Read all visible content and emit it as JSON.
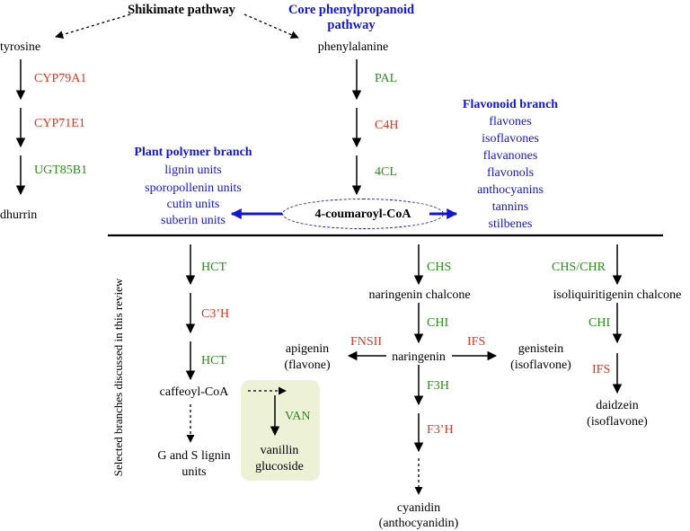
{
  "headers": {
    "shikimate": "Shikimate pathway",
    "core_line1": "Core phenylpropanoid",
    "core_line2": "pathway",
    "flavonoid": "Flavonoid branch",
    "polymer": "Plant polymer branch"
  },
  "dhurrin_path": {
    "tyrosine": "tyrosine",
    "enzyme1": "CYP79A1",
    "enzyme2": "CYP71E1",
    "enzyme3": "UGT85B1",
    "product": "dhurrin"
  },
  "core_path": {
    "phenylalanine": "phenylalanine",
    "enzyme1": "PAL",
    "enzyme2": "C4H",
    "enzyme3": "4CL",
    "hub": "4-coumaroyl-CoA"
  },
  "polymer_list": [
    "lignin units",
    "sporopollenin units",
    "cutin units",
    "suberin units"
  ],
  "flavonoid_list": [
    "flavones",
    "isoflavones",
    "flavanones",
    "flavonols",
    "anthocyanins",
    "tannins",
    "stilbenes"
  ],
  "side_label": "Selected branches discussed in this review",
  "lignin_branch": {
    "enzyme1": "HCT",
    "enzyme2": "C3’H",
    "enzyme3": "HCT",
    "intermediate": "caffeoyl-CoA",
    "product_line1": "G and S lignin",
    "product_line2": "units"
  },
  "vanillin_branch": {
    "enzyme": "VAN",
    "product_line1": "vanillin",
    "product_line2": "glucoside"
  },
  "flavonoid_branch": {
    "enzyme_chs": "CHS",
    "chalcone": "naringenin chalcone",
    "enzyme_chi": "CHI",
    "naringenin": "naringenin",
    "enzyme_fnsii": "FNSII",
    "apigenin_line1": "apigenin",
    "apigenin_line2": "(flavone)",
    "enzyme_ifs": "IFS",
    "genistein_line1": "genistein",
    "genistein_line2": "(isoflavone)",
    "enzyme_f3h": "F3H",
    "enzyme_f3ph": "F3’H",
    "cyanidin_line1": "cyanidin",
    "cyanidin_line2": "(anthocyanidin)"
  },
  "isoflavonoid_branch": {
    "enzyme_chs_chr": "CHS/CHR",
    "chalcone": "isoliquiritigenin chalcone",
    "enzyme_chi": "CHI",
    "enzyme_ifs": "IFS",
    "daidzein_line1": "daidzein",
    "daidzein_line2": "(isoflavone)"
  },
  "colors": {
    "enzyme_red": "#e8331d",
    "enzyme_green": "#2e8b1f",
    "branch_blue": "#1515d6",
    "vanillin_box": "#edf1d6"
  }
}
